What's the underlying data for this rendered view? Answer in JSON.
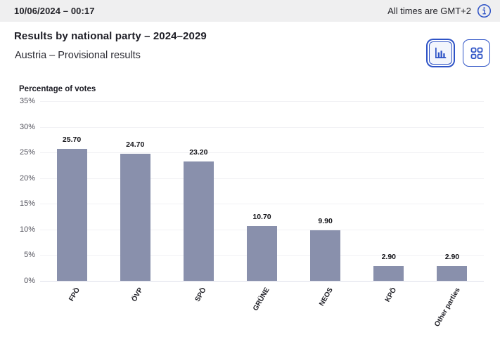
{
  "topbar": {
    "datetime": "10/06/2024 – 00:17",
    "timezone_note": "All times are GMT+2"
  },
  "header": {
    "title": "Results by national party – 2024–2029",
    "subtitle": "Austria – Provisional results"
  },
  "view_toggle": {
    "chart_view": "bar-chart-view",
    "grid_view": "grid-view"
  },
  "colors": {
    "accent_blue": "#2e53c6",
    "bar": "#8990ac",
    "topbar_bg": "#efeff0",
    "gridline": "#f1f1f4",
    "axis_line": "#dcdee9"
  },
  "chart_data": {
    "type": "bar",
    "title": "Percentage of votes",
    "categories": [
      "FPÖ",
      "ÖVP",
      "SPÖ",
      "GRÜNE",
      "NEOS",
      "KPÖ",
      "Other parties"
    ],
    "values": [
      25.7,
      24.7,
      23.2,
      10.7,
      9.9,
      2.9,
      2.9
    ],
    "value_labels": [
      "25.70",
      "24.70",
      "23.20",
      "10.70",
      "9.90",
      "2.90",
      "2.90"
    ],
    "ylabel": "Percentage of votes",
    "xlabel": "",
    "ylim": [
      0,
      35
    ],
    "yticks_percent": [
      35,
      30,
      25,
      20,
      15,
      10,
      5,
      0
    ],
    "ytick_labels": [
      "35%",
      "30%",
      "25%",
      "20%",
      "15%",
      "10%",
      "5%",
      "0%"
    ],
    "grid": true,
    "legend": false,
    "bar_color": "#8990ac"
  }
}
